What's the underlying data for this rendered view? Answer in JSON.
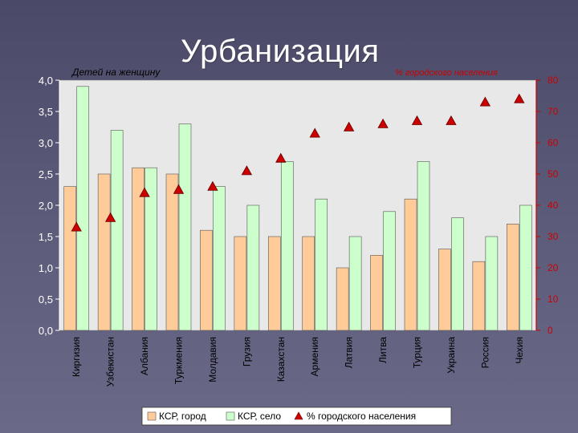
{
  "title": "Урбанизация",
  "colors": {
    "bar_city": "#ffcc99",
    "bar_village": "#ccffcc",
    "marker": "#cc0000",
    "plot_bg": "#e8e8e8",
    "right_axis": "#cc0000"
  },
  "chart_data": {
    "type": "bar",
    "title": "Урбанизация",
    "ylabel": "Детей на женщину",
    "y2label": "% городского населения",
    "ylim": [
      0,
      4.0
    ],
    "y2lim": [
      0,
      80
    ],
    "yticks": [
      "0,0",
      "0,5",
      "1,0",
      "1,5",
      "2,0",
      "2,5",
      "3,0",
      "3,5",
      "4,0"
    ],
    "y2ticks": [
      "0",
      "10",
      "20",
      "30",
      "40",
      "50",
      "60",
      "70",
      "80"
    ],
    "grid": false,
    "legend": "bottom",
    "categories": [
      "Киргизия",
      "Узбекистан",
      "Албания",
      "Туркмения",
      "Молдавия",
      "Грузия",
      "Казахстан",
      "Армения",
      "Латвия",
      "Литва",
      "Турция",
      "Украина",
      "Россия",
      "Чехия"
    ],
    "series": [
      {
        "name": "КСР, город",
        "type": "bar",
        "axis": "left",
        "values": [
          2.3,
          2.5,
          2.6,
          2.5,
          1.6,
          1.5,
          1.5,
          1.5,
          1.0,
          1.2,
          2.1,
          1.3,
          1.1,
          1.7
        ]
      },
      {
        "name": "КСР, село",
        "type": "bar",
        "axis": "left",
        "values": [
          3.9,
          3.2,
          2.6,
          3.3,
          2.3,
          2.0,
          2.7,
          2.1,
          1.5,
          1.9,
          2.7,
          1.8,
          1.5,
          2.0
        ]
      },
      {
        "name": "% городского населения",
        "type": "marker",
        "axis": "right",
        "values": [
          33,
          36,
          44,
          45,
          46,
          51,
          55,
          63,
          65,
          66,
          67,
          67,
          73,
          74
        ]
      }
    ]
  }
}
